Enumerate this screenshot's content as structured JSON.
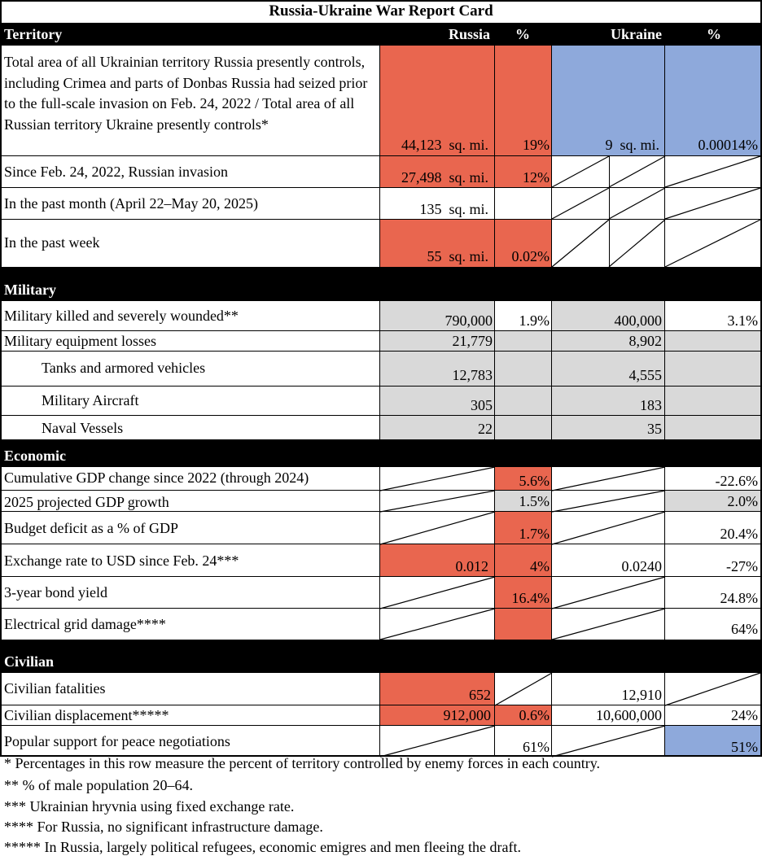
{
  "title": "Russia-Ukraine War Report Card",
  "colors": {
    "russia_fill": "#E9664F",
    "ukraine_fill": "#8EA9DB",
    "neutral_fill": "#D9D9D9",
    "header_bg": "#000000"
  },
  "headers": {
    "territory": "Territory",
    "russia": "Russia",
    "pct": "%",
    "ukraine": "Ukraine",
    "pct2": "%"
  },
  "territory": {
    "total_label": "Total area of all Ukrainian territory Russia presently controls, including Crimea and parts of Donbas Russia had seized prior to the full-scale invasion on Feb. 24, 2022 / Total area of all Russian territory Ukraine presently controls*",
    "total_russia": "44,123",
    "total_russia_unit": "sq. mi.",
    "total_russia_pct": "19%",
    "total_ukraine": "9",
    "total_ukraine_unit": "sq. mi.",
    "total_ukraine_pct": "0.00014%",
    "since_label": "Since Feb. 24, 2022, Russian invasion",
    "since_russia": "27,498",
    "since_russia_unit": "sq. mi.",
    "since_russia_pct": "12%",
    "month_label": "In the past month (April 22–May 20, 2025)",
    "month_russia": "135",
    "month_russia_unit": "sq. mi.",
    "week_label": "In the past week",
    "week_russia": "55",
    "week_russia_unit": "sq. mi.",
    "week_russia_pct": "0.02%"
  },
  "military": {
    "header": "Military",
    "killed_label": "Military killed and severely wounded**",
    "killed_russia": "790,000",
    "killed_russia_pct": "1.9%",
    "killed_ukraine": "400,000",
    "killed_ukraine_pct": "3.1%",
    "equipment_label": "Military equipment losses",
    "equipment_russia": "21,779",
    "equipment_ukraine": "8,902",
    "tanks_label": "Tanks and armored vehicles",
    "tanks_russia": "12,783",
    "tanks_ukraine": "4,555",
    "aircraft_label": "Military Aircraft",
    "aircraft_russia": "305",
    "aircraft_ukraine": "183",
    "naval_label": "Naval Vessels",
    "naval_russia": "22",
    "naval_ukraine": "35"
  },
  "economic": {
    "header": "Economic",
    "gdp_label": "Cumulative GDP change since 2022 (through 2024)",
    "gdp_russia_pct": "5.6%",
    "gdp_ukraine_pct": "-22.6%",
    "proj_label": "2025 projected GDP growth",
    "proj_russia_pct": "1.5%",
    "proj_ukraine_pct": "2.0%",
    "deficit_label": "Budget deficit as a % of GDP",
    "deficit_russia_pct": "1.7%",
    "deficit_ukraine_pct": "20.4%",
    "fx_label": "Exchange rate to USD since Feb. 24***",
    "fx_russia": "0.012",
    "fx_russia_pct": "4%",
    "fx_ukraine": "0.0240",
    "fx_ukraine_pct": "-27%",
    "bond_label": "3-year bond yield",
    "bond_russia_pct": "16.4%",
    "bond_ukraine_pct": "24.8%",
    "grid_label": "Electrical grid damage****",
    "grid_ukraine_pct": "64%"
  },
  "civilian": {
    "header": "Civilian",
    "fatal_label": "Civilian fatalities",
    "fatal_russia": "652",
    "fatal_ukraine": "12,910",
    "displace_label": "Civilian displacement*****",
    "displace_russia": "912,000",
    "displace_russia_pct": "0.6%",
    "displace_ukraine": "10,600,000",
    "displace_ukraine_pct": "24%",
    "peace_label": "Popular support for peace negotiations",
    "peace_russia_pct": "61%",
    "peace_ukraine_pct": "51%"
  },
  "footnotes": [
    "* Percentages in this row measure the percent of territory controlled by enemy forces in each country.",
    "** % of male population 20–64.",
    "*** Ukrainian hryvnia using fixed exchange rate.",
    "**** For Russia, no significant infrastructure damage.",
    "***** In Russia, largely political refugees, economic emigres and men fleeing the draft."
  ]
}
